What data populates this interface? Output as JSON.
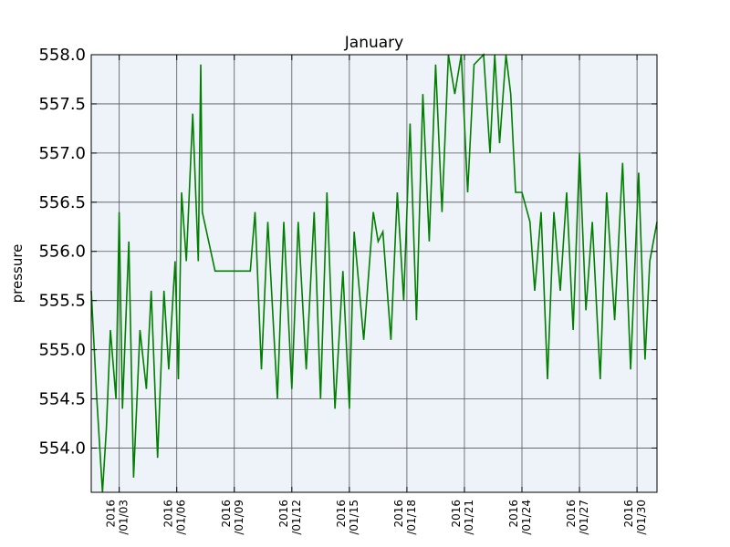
{
  "chart_data": {
    "type": "line",
    "title": "January",
    "xlabel": "",
    "ylabel": "pressure",
    "ylim": [
      553.55,
      558.0
    ],
    "xlim": [
      "2016-01-01T13:00",
      "2016-01-31T01:00"
    ],
    "grid": true,
    "background": "#edf3f9",
    "line_color": "#007f00",
    "y_ticks": [
      "558.0",
      "557.5",
      "557.0",
      "556.5",
      "556.0",
      "555.5",
      "555.0",
      "554.5",
      "554.0"
    ],
    "x_ticks": [
      {
        "date": "2016-01-03",
        "line1": "2016",
        "line2": "/01/03"
      },
      {
        "date": "2016-01-06",
        "line1": "2016",
        "line2": "/01/06"
      },
      {
        "date": "2016-01-09",
        "line1": "2016",
        "line2": "/01/09"
      },
      {
        "date": "2016-01-12",
        "line1": "2016",
        "line2": "/01/12"
      },
      {
        "date": "2016-01-15",
        "line1": "2016",
        "line2": "/01/15"
      },
      {
        "date": "2016-01-18",
        "line1": "2016",
        "line2": "/01/18"
      },
      {
        "date": "2016-01-21",
        "line1": "2016",
        "line2": "/01/21"
      },
      {
        "date": "2016-01-24",
        "line1": "2016",
        "line2": "/01/24"
      },
      {
        "date": "2016-01-27",
        "line1": "2016",
        "line2": "/01/27"
      },
      {
        "date": "2016-01-30",
        "line1": "2016",
        "line2": "/01/30"
      }
    ],
    "series": [
      {
        "x": [
          "2016-01-01T13:00",
          "2016-01-01T20:00",
          "2016-01-02T03:00",
          "2016-01-02T08:00",
          "2016-01-02T13:00",
          "2016-01-02T20:00",
          "2016-01-03T00:00",
          "2016-01-03T04:00",
          "2016-01-03T12:00",
          "2016-01-03T18:00",
          "2016-01-04T02:00",
          "2016-01-04T10:00",
          "2016-01-04T16:00",
          "2016-01-05T00:00",
          "2016-01-05T08:00",
          "2016-01-05T14:00",
          "2016-01-05T22:00",
          "2016-01-06T02:00",
          "2016-01-06T06:00",
          "2016-01-06T12:00",
          "2016-01-06T20:00",
          "2016-01-07T03:00",
          "2016-01-07T06:00",
          "2016-01-07T08:00",
          "2016-01-08T00:00",
          "2016-01-09T00:00",
          "2016-01-09T16:00",
          "2016-01-09T20:00",
          "2016-01-10T02:00",
          "2016-01-10T10:00",
          "2016-01-10T18:00",
          "2016-01-11T06:00",
          "2016-01-11T14:00",
          "2016-01-12T00:00",
          "2016-01-12T08:00",
          "2016-01-12T18:00",
          "2016-01-13T04:00",
          "2016-01-13T12:00",
          "2016-01-13T20:00",
          "2016-01-14T06:00",
          "2016-01-14T16:00",
          "2016-01-15T00:00",
          "2016-01-15T06:00",
          "2016-01-15T18:00",
          "2016-01-16T06:00",
          "2016-01-16T12:00",
          "2016-01-16T18:00",
          "2016-01-17T04:00",
          "2016-01-17T12:00",
          "2016-01-17T20:00",
          "2016-01-18T04:00",
          "2016-01-18T12:00",
          "2016-01-18T20:00",
          "2016-01-19T04:00",
          "2016-01-19T12:00",
          "2016-01-19T20:00",
          "2016-01-20T04:00",
          "2016-01-20T12:00",
          "2016-01-20T20:00",
          "2016-01-21T04:00",
          "2016-01-21T12:00",
          "2016-01-22T00:00",
          "2016-01-22T08:00",
          "2016-01-22T14:00",
          "2016-01-22T20:00",
          "2016-01-23T04:00",
          "2016-01-23T10:00",
          "2016-01-23T16:00",
          "2016-01-24T00:00",
          "2016-01-24T10:00",
          "2016-01-24T16:00",
          "2016-01-25T00:00",
          "2016-01-25T08:00",
          "2016-01-25T16:00",
          "2016-01-26T00:00",
          "2016-01-26T08:00",
          "2016-01-26T16:00",
          "2016-01-27T00:00",
          "2016-01-27T08:00",
          "2016-01-27T16:00",
          "2016-01-28T02:00",
          "2016-01-28T10:00",
          "2016-01-28T20:00",
          "2016-01-29T06:00",
          "2016-01-29T16:00",
          "2016-01-30T02:00",
          "2016-01-30T10:00",
          "2016-01-30T16:00",
          "2016-01-31T01:00"
        ],
        "values": [
          555.6,
          554.5,
          553.55,
          554.2,
          555.2,
          554.5,
          556.4,
          554.4,
          556.1,
          553.7,
          555.2,
          554.6,
          555.6,
          553.9,
          555.6,
          554.8,
          555.9,
          554.7,
          556.6,
          555.9,
          557.4,
          555.9,
          557.9,
          556.4,
          555.8,
          555.8,
          555.8,
          555.8,
          556.4,
          554.8,
          556.3,
          554.5,
          556.3,
          554.6,
          556.3,
          554.8,
          556.4,
          554.5,
          556.6,
          554.4,
          555.8,
          554.4,
          556.2,
          555.1,
          556.4,
          556.1,
          556.2,
          555.1,
          556.6,
          555.5,
          557.3,
          555.3,
          557.6,
          556.1,
          557.9,
          556.4,
          558.0,
          557.6,
          558.0,
          556.6,
          557.9,
          558.0,
          557.0,
          558.0,
          557.1,
          558.0,
          557.6,
          556.6,
          556.6,
          556.3,
          555.6,
          556.4,
          554.7,
          556.4,
          555.6,
          556.6,
          555.2,
          557.0,
          555.4,
          556.3,
          554.7,
          556.6,
          555.3,
          556.9,
          554.8,
          556.8,
          554.9,
          555.9,
          556.3
        ]
      }
    ]
  }
}
